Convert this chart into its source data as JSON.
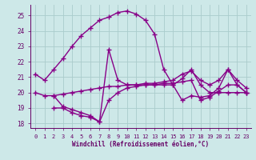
{
  "xlabel": "Windchill (Refroidissement éolien,°C)",
  "bg_color": "#cde8e8",
  "line_color": "#880088",
  "grid_color": "#aacccc",
  "xlim": [
    -0.5,
    23.5
  ],
  "ylim": [
    17.7,
    25.7
  ],
  "yticks": [
    18,
    19,
    20,
    21,
    22,
    23,
    24,
    25
  ],
  "xticks": [
    0,
    1,
    2,
    3,
    4,
    5,
    6,
    7,
    8,
    9,
    10,
    11,
    12,
    13,
    14,
    15,
    16,
    17,
    18,
    19,
    20,
    21,
    22,
    23
  ],
  "font_color": "#660066",
  "marker": "+",
  "markersize": 4,
  "linewidth": 1.0,
  "series": [
    {
      "x": [
        0,
        1,
        2,
        3,
        4,
        5,
        6,
        7,
        8,
        9,
        10,
        11,
        12,
        13,
        14,
        15,
        16,
        17,
        18,
        19,
        20,
        21,
        22,
        23
      ],
      "y": [
        21.2,
        20.8,
        21.5,
        22.2,
        23.0,
        23.7,
        24.2,
        24.7,
        24.9,
        25.2,
        25.3,
        25.1,
        24.7,
        23.8,
        21.5,
        20.5,
        20.9,
        21.5,
        20.5,
        20.0,
        20.0,
        20.0,
        20.0,
        20.0
      ]
    },
    {
      "x": [
        0,
        1,
        2,
        3,
        4,
        5,
        6,
        7,
        8,
        9,
        10,
        11,
        12,
        13,
        14,
        15,
        16,
        17,
        18,
        19,
        20,
        21,
        22,
        23
      ],
      "y": [
        20.0,
        19.8,
        19.8,
        19.9,
        20.0,
        20.1,
        20.2,
        20.3,
        20.4,
        20.4,
        20.5,
        20.5,
        20.6,
        20.6,
        20.7,
        20.8,
        21.2,
        21.4,
        20.8,
        20.5,
        20.8,
        21.5,
        20.8,
        20.3
      ]
    },
    {
      "x": [
        2,
        3,
        4,
        5,
        6,
        7,
        8,
        9,
        10,
        11,
        12,
        13,
        14,
        15,
        16,
        17,
        18,
        19,
        20,
        21,
        22,
        23
      ],
      "y": [
        19.0,
        19.0,
        18.7,
        18.5,
        18.4,
        18.1,
        19.5,
        20.0,
        20.3,
        20.4,
        20.5,
        20.5,
        20.6,
        20.6,
        20.7,
        20.8,
        19.5,
        19.7,
        20.1,
        20.5,
        20.5,
        20.0
      ]
    },
    {
      "x": [
        2,
        3,
        4,
        5,
        6,
        7,
        8,
        9,
        10,
        11,
        12,
        13,
        14,
        15,
        16,
        17,
        18,
        19,
        20,
        21,
        22,
        23
      ],
      "y": [
        19.8,
        19.1,
        18.9,
        18.7,
        18.5,
        18.1,
        22.8,
        20.8,
        20.5,
        20.5,
        20.5,
        20.5,
        20.5,
        20.5,
        19.5,
        19.8,
        19.7,
        19.8,
        20.3,
        21.5,
        20.5,
        20.0
      ]
    }
  ]
}
